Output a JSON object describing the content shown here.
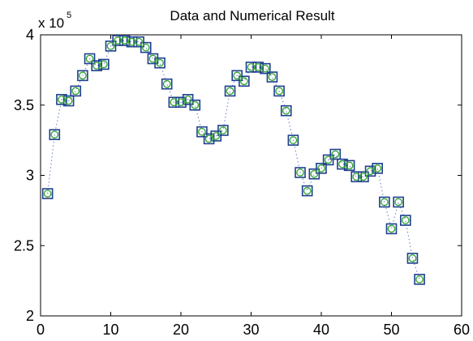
{
  "chart_data": {
    "type": "scatter",
    "title": "Data and Numerical Result",
    "xlabel": "",
    "ylabel": "",
    "y_multiplier_label": "x 10",
    "y_multiplier_exponent": "5",
    "xlim": [
      0,
      60
    ],
    "ylim": [
      2,
      4
    ],
    "x_ticks": [
      0,
      10,
      20,
      30,
      40,
      50,
      60
    ],
    "y_tick_values": [
      2,
      2.5,
      3,
      3.5,
      4
    ],
    "y_tick_labels": [
      "2",
      "2.5",
      "3",
      "3.5",
      "4"
    ],
    "grid": false,
    "colors": {
      "data_marker": "#1f3f8f",
      "numerical_marker": "#3aa73a",
      "line": "#5a7fbf"
    },
    "series": [
      {
        "x": [
          1,
          2,
          3,
          4,
          5,
          6,
          7,
          8,
          9,
          10,
          11,
          12,
          13,
          14,
          15,
          16,
          17,
          18,
          19,
          20,
          21,
          22,
          23,
          24,
          25,
          26,
          27,
          28,
          29,
          30,
          31,
          32,
          33,
          34,
          35,
          36,
          37,
          38,
          39,
          40,
          41,
          42,
          43,
          44,
          45,
          46,
          47,
          48,
          49,
          50,
          51,
          52,
          53,
          54
        ],
        "values": [
          2.87,
          3.29,
          3.54,
          3.53,
          3.6,
          3.71,
          3.83,
          3.78,
          3.79,
          3.92,
          3.96,
          3.96,
          3.95,
          3.95,
          3.91,
          3.83,
          3.8,
          3.65,
          3.52,
          3.52,
          3.54,
          3.5,
          3.31,
          3.26,
          3.28,
          3.32,
          3.6,
          3.71,
          3.67,
          3.77,
          3.77,
          3.76,
          3.7,
          3.6,
          3.46,
          3.25,
          3.02,
          2.89,
          3.01,
          3.05,
          3.11,
          3.15,
          3.08,
          3.07,
          2.99,
          2.99,
          3.03,
          3.05,
          2.81,
          2.62,
          2.81,
          2.68,
          2.41,
          2.26
        ]
      },
      {
        "x": [
          1,
          2,
          3,
          4,
          5,
          6,
          7,
          8,
          9,
          10,
          11,
          12,
          13,
          14,
          15,
          16,
          17,
          18,
          19,
          20,
          21,
          22,
          23,
          24,
          25,
          26,
          27,
          28,
          29,
          30,
          31,
          32,
          33,
          34,
          35,
          36,
          37,
          38,
          39,
          40,
          41,
          42,
          43,
          44,
          45,
          46,
          47,
          48,
          49,
          50,
          51,
          52,
          53,
          54
        ],
        "values": [
          2.87,
          3.29,
          3.54,
          3.53,
          3.6,
          3.71,
          3.83,
          3.78,
          3.79,
          3.92,
          3.96,
          3.96,
          3.95,
          3.95,
          3.91,
          3.83,
          3.8,
          3.65,
          3.52,
          3.52,
          3.54,
          3.5,
          3.31,
          3.26,
          3.28,
          3.32,
          3.6,
          3.71,
          3.67,
          3.77,
          3.77,
          3.76,
          3.7,
          3.6,
          3.46,
          3.25,
          3.02,
          2.89,
          3.01,
          3.05,
          3.11,
          3.15,
          3.08,
          3.07,
          2.99,
          2.99,
          3.03,
          3.05,
          2.81,
          2.62,
          2.81,
          2.68,
          2.41,
          2.26
        ]
      }
    ]
  }
}
